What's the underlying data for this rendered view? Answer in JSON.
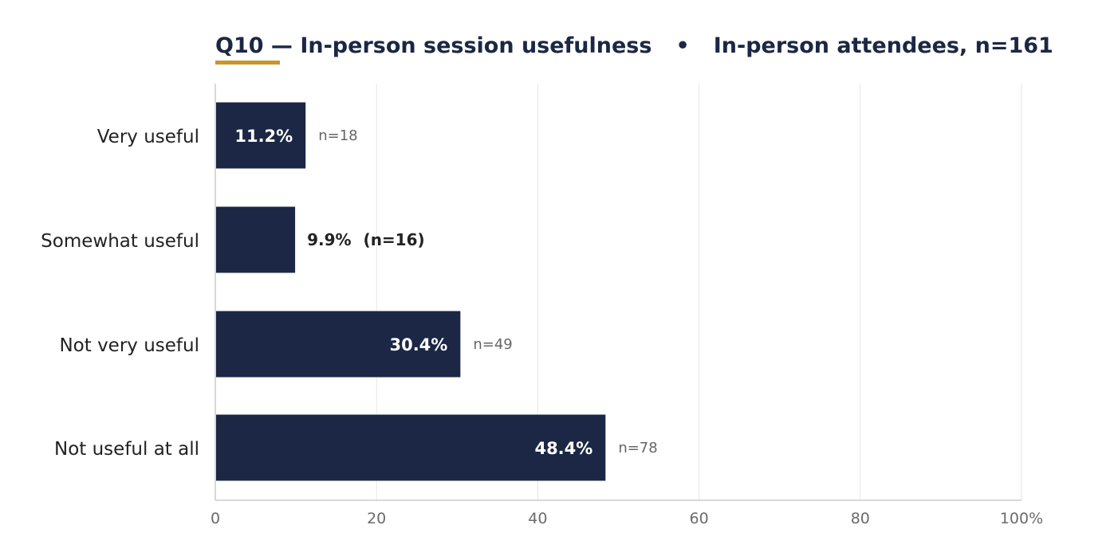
{
  "chart_data": {
    "type": "bar",
    "orientation": "horizontal",
    "title": "Q10 — In-person session usefulness",
    "subtitle": "In-person attendees, n=161",
    "title_separator": "•",
    "categories": [
      "Very useful",
      "Somewhat useful",
      "Not very useful",
      "Not useful at all"
    ],
    "values": [
      11.2,
      9.9,
      30.4,
      48.4
    ],
    "value_labels": [
      "11.2%",
      "9.9%",
      "30.4%",
      "48.4%"
    ],
    "counts": [
      18,
      16,
      49,
      78
    ],
    "count_labels": [
      "n=18",
      "(n=16)",
      "n=49",
      "n=78"
    ],
    "xlim": [
      0,
      100
    ],
    "xticks": [
      0,
      20,
      40,
      60,
      80,
      100
    ],
    "xtick_labels": [
      "0",
      "20",
      "40",
      "60",
      "80",
      "100%"
    ],
    "xlabel": "",
    "ylabel": "",
    "grid": "vertical",
    "legend": "none",
    "colors": {
      "bar": "#1b2744",
      "accent": "#c9962b",
      "title": "#1b2744",
      "grid": "#e6e6e6",
      "axis": "#cccccc"
    }
  }
}
